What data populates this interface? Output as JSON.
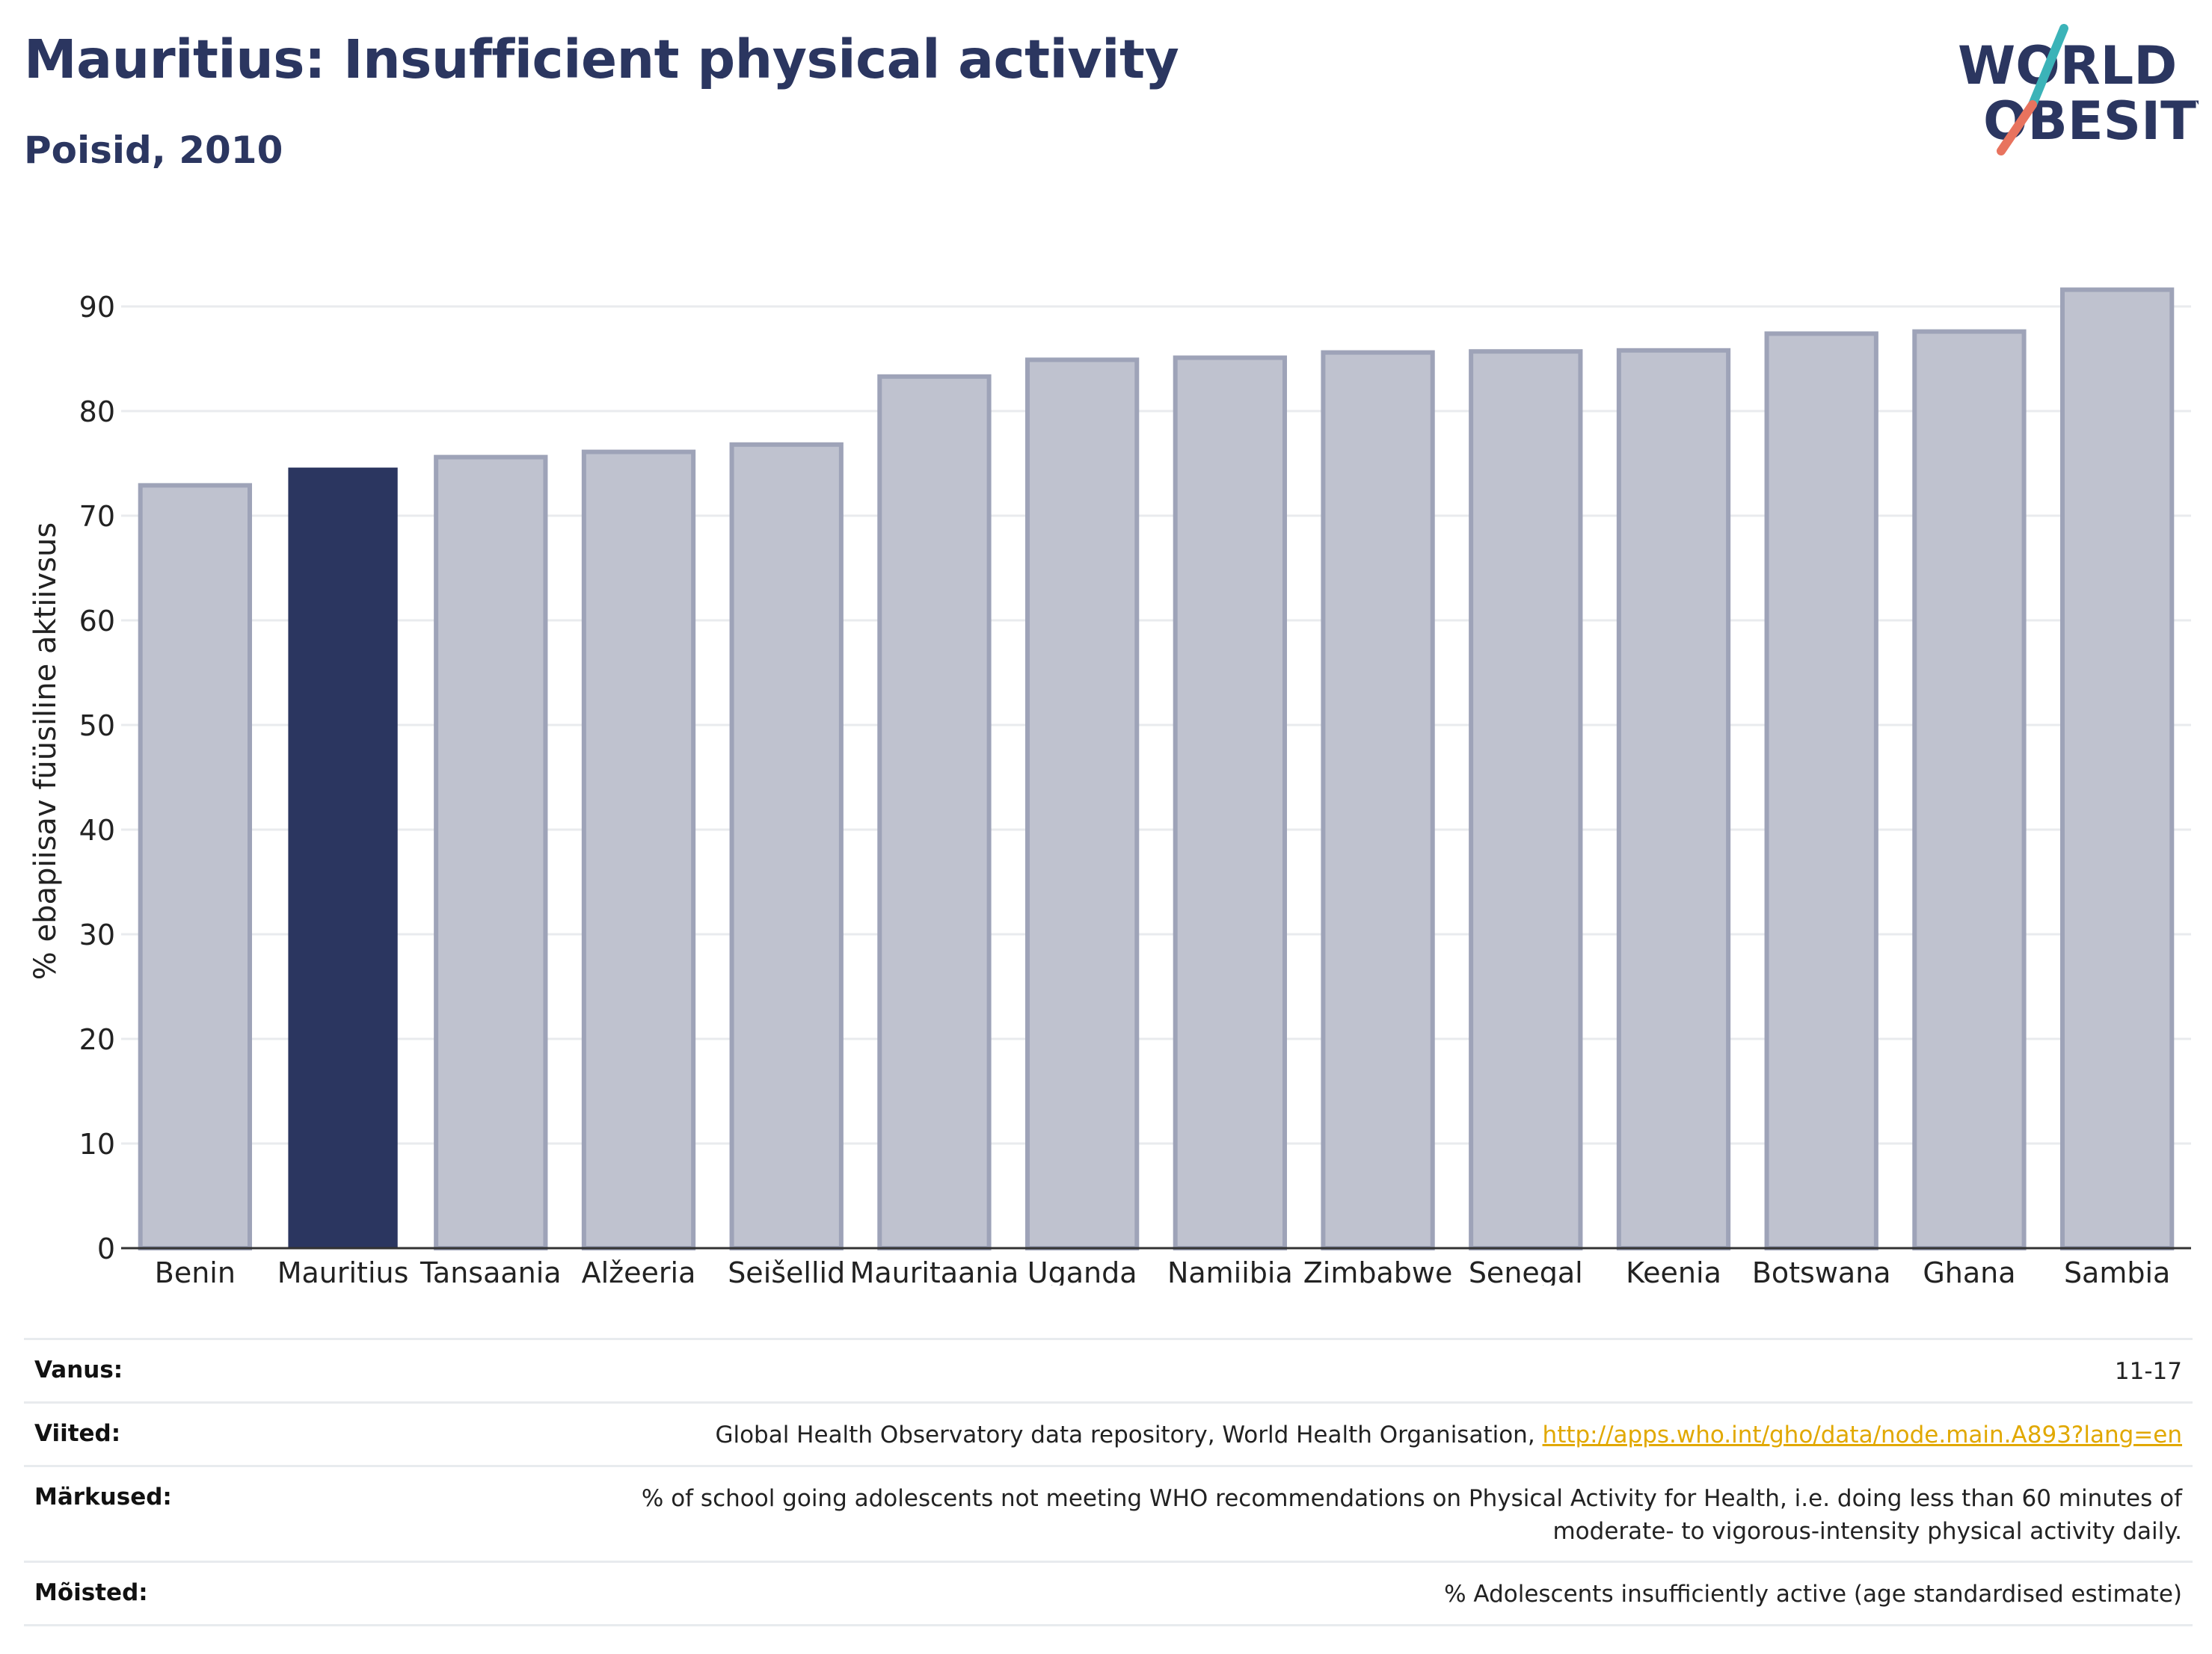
{
  "title": "Mauritius: Insufficient physical activity",
  "subtitle": "Poisid, 2010",
  "logo": {
    "line1": "WORLD",
    "line2": "OBESITY",
    "colors": {
      "text": "#2b3660",
      "slash_teal": "#3bb3b8",
      "slash_coral": "#e8735e"
    }
  },
  "colors": {
    "highlight": "#2b3660",
    "bar_fill": "#bfc2cf",
    "bar_stroke": "#9ea3b8"
  },
  "chart_data": {
    "type": "bar",
    "ylabel": "% ebapiisav füüsiline aktiivsus",
    "xlabel": "",
    "ylim": [
      0,
      95
    ],
    "yticks": [
      0,
      10,
      20,
      30,
      40,
      50,
      60,
      70,
      80,
      90
    ],
    "grid": true,
    "highlight": "Mauritius",
    "categories": [
      "Benin",
      "Mauritius",
      "Tansaania",
      "Alžeeria",
      "Seišellid",
      "Mauritaania",
      "Uganda",
      "Namiibia",
      "Zimbabwe",
      "Senegal",
      "Keenia",
      "Botswana",
      "Ghana",
      "Sambia"
    ],
    "values": [
      72.9,
      74.6,
      75.6,
      76.1,
      76.8,
      83.3,
      84.9,
      85.1,
      85.6,
      85.7,
      85.8,
      87.4,
      87.6,
      91.6
    ]
  },
  "meta": {
    "age": {
      "label": "Vanus:",
      "value": "11-17"
    },
    "refs": {
      "label": "Viited:",
      "value": "Global Health Observatory data repository, World Health Organisation, ",
      "link": "http://apps.who.int/gho/data/node.main.A893?lang=en"
    },
    "notes": {
      "label": "Märkused:",
      "line1": "% of school going adolescents not meeting WHO recommendations on Physical Activity for Health, i.e. doing less than 60 minutes of",
      "line2": "moderate- to vigorous-intensity physical activity daily."
    },
    "defs": {
      "label": "Mõisted:",
      "value": "% Adolescents insufficiently active (age standardised estimate)"
    }
  }
}
